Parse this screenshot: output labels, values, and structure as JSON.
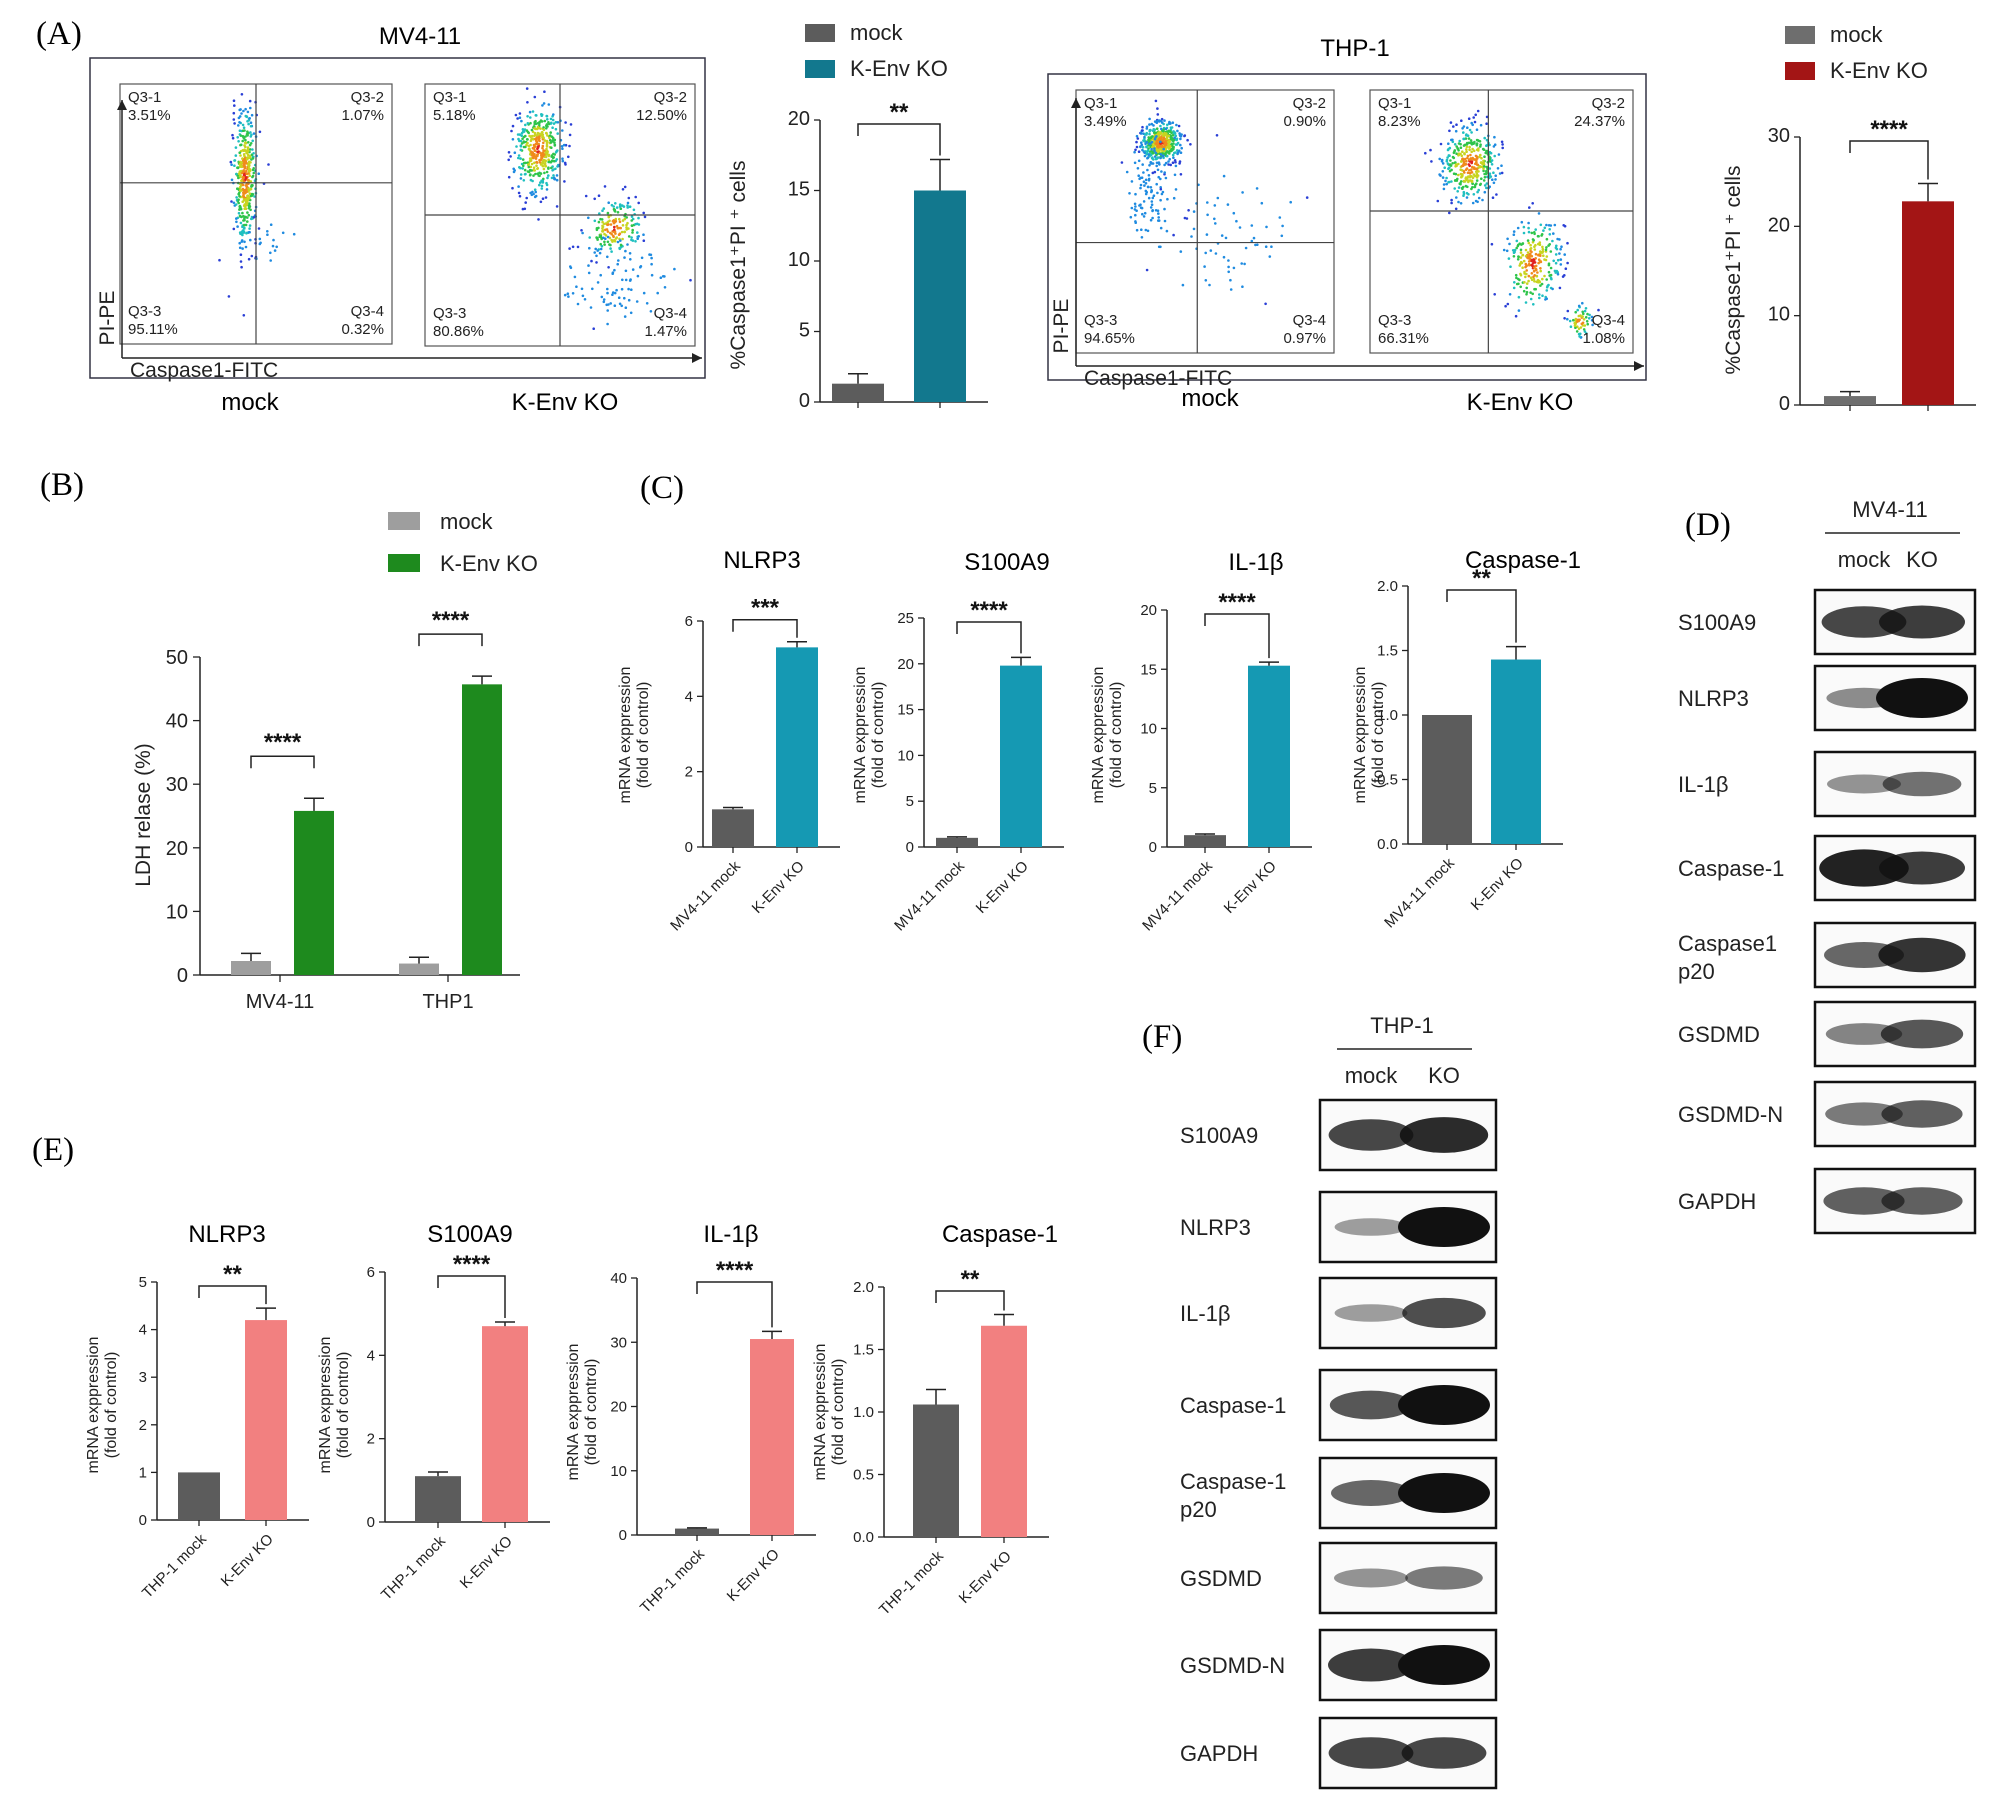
{
  "panels": {
    "A": {
      "label": "(A)",
      "mv411": {
        "title": "MV4-11",
        "x_axis": "Caspase1-FITC",
        "y_axis": "PI-PE",
        "mock_label": "mock",
        "ko_label": "K-Env KO",
        "mock_quadrants": [
          {
            "name": "Q3-1",
            "value": "3.51%"
          },
          {
            "name": "Q3-2",
            "value": "1.07%"
          },
          {
            "name": "Q3-3",
            "value": "95.11%"
          },
          {
            "name": "Q3-4",
            "value": "0.32%"
          }
        ],
        "ko_quadrants": [
          {
            "name": "Q3-1",
            "value": "5.18%"
          },
          {
            "name": "Q3-2",
            "value": "12.50%"
          },
          {
            "name": "Q3-3",
            "value": "80.86%"
          },
          {
            "name": "Q3-4",
            "value": "1.47%"
          }
        ]
      },
      "thp1": {
        "title": "THP-1",
        "x_axis": "Caspase1-FITC",
        "y_axis": "PI-PE",
        "mock_label": "mock",
        "ko_label": "K-Env KO",
        "mock_quadrants": [
          {
            "name": "Q3-1",
            "value": "3.49%"
          },
          {
            "name": "Q3-2",
            "value": "0.90%"
          },
          {
            "name": "Q3-3",
            "value": "94.65%"
          },
          {
            "name": "Q3-4",
            "value": "0.97%"
          }
        ],
        "ko_quadrants": [
          {
            "name": "Q3-1",
            "value": "8.23%"
          },
          {
            "name": "Q3-2",
            "value": "24.37%"
          },
          {
            "name": "Q3-3",
            "value": "66.31%"
          },
          {
            "name": "Q3-4",
            "value": "1.08%"
          }
        ]
      },
      "legend": [
        "mock",
        "K-Env KO"
      ]
    },
    "B": {
      "label": "(B)"
    },
    "C": {
      "label": "(C)"
    },
    "D": {
      "label": "(D)",
      "cell_line": "MV4-11",
      "lanes": [
        "mock",
        "KO"
      ],
      "bands": [
        "S100A9",
        "NLRP3",
        "IL-1β",
        "Caspase-1",
        "Caspase1 p20",
        "GSDMD",
        "GSDMD-N",
        "GAPDH"
      ]
    },
    "E": {
      "label": "(E)"
    },
    "F": {
      "label": "(F)",
      "cell_line": "THP-1",
      "lanes": [
        "mock",
        "KO"
      ],
      "bands": [
        "S100A9",
        "NLRP3",
        "IL-1β",
        "Caspase-1",
        "Caspase-1 p20",
        "GSDMD",
        "GSDMD-N",
        "GAPDH"
      ]
    }
  },
  "colors": {
    "mock_dark": "#5c5c5c",
    "mock_light": "#9e9e9e",
    "teal_A": "#12788e",
    "red_A": "#a31515",
    "green_B": "#1e8a1e",
    "teal_C": "#1599b3",
    "pink_E": "#f28080"
  },
  "chart_data": [
    {
      "id": "A-MV4-11",
      "type": "bar",
      "categories": [
        "mock",
        "K-Env KO"
      ],
      "values": [
        1.3,
        15.0
      ],
      "errors": [
        0.7,
        2.2
      ],
      "ylabel": "%Caspase1⁺PI ⁺ cells",
      "ylim": [
        0,
        20
      ],
      "yticks": [
        "0",
        "5",
        "10",
        "15",
        "20"
      ],
      "significance": "**",
      "legend": [
        "mock",
        "K-Env KO"
      ],
      "colors": [
        "#5c5c5c",
        "#12788e"
      ]
    },
    {
      "id": "A-THP-1",
      "type": "bar",
      "categories": [
        "mock",
        "K-Env KO"
      ],
      "values": [
        1.0,
        22.8
      ],
      "errors": [
        0.5,
        2.0
      ],
      "ylabel": "%Caspase1⁺PI ⁺ cells",
      "ylim": [
        0,
        30
      ],
      "yticks": [
        "0",
        "10",
        "20",
        "30"
      ],
      "significance": "****",
      "legend": [
        "mock",
        "K-Env KO"
      ],
      "colors": [
        "#6e6e6e",
        "#a31515"
      ]
    },
    {
      "id": "B",
      "type": "bar",
      "categories": [
        "MV4-11",
        "THP1"
      ],
      "series": [
        {
          "name": "mock",
          "values": [
            2.2,
            1.8
          ],
          "errors": [
            1.2,
            1.0
          ]
        },
        {
          "name": "K-Env KO",
          "values": [
            25.8,
            45.7
          ],
          "errors": [
            2.0,
            1.3
          ]
        }
      ],
      "ylabel": "LDH relase (%)",
      "ylim": [
        0,
        50
      ],
      "yticks": [
        "0",
        "10",
        "20",
        "30",
        "40",
        "50"
      ],
      "significance": [
        "****",
        "****"
      ]
    },
    {
      "id": "C-NLRP3",
      "type": "bar",
      "title": "NLRP3",
      "categories": [
        "MV4-11 mock",
        "K-Env KO"
      ],
      "values": [
        1.0,
        5.3
      ],
      "errors": [
        0.05,
        0.15
      ],
      "ylabel": "mRNA exppression (fold of control)",
      "ylim": [
        0,
        6
      ],
      "yticks": [
        "0",
        "2",
        "4",
        "6"
      ],
      "significance": "***"
    },
    {
      "id": "C-S100A9",
      "type": "bar",
      "title": "S100A9",
      "categories": [
        "MV4-11 mock",
        "K-Env KO"
      ],
      "values": [
        1.0,
        19.8
      ],
      "errors": [
        0.1,
        0.9
      ],
      "ylabel": "mRNA exppression (fold of control)",
      "ylim": [
        0,
        25
      ],
      "yticks": [
        "0",
        "5",
        "10",
        "15",
        "20",
        "25"
      ],
      "significance": "****"
    },
    {
      "id": "C-IL-1β",
      "type": "bar",
      "title": "IL-1β",
      "categories": [
        "MV4-11 mock",
        "K-Env KO"
      ],
      "values": [
        1.0,
        15.3
      ],
      "errors": [
        0.1,
        0.3
      ],
      "ylabel": "mRNA exppression (fold of control)",
      "ylim": [
        0,
        20
      ],
      "yticks": [
        "0",
        "5",
        "10",
        "15",
        "20"
      ],
      "significance": "****"
    },
    {
      "id": "C-Caspase-1",
      "type": "bar",
      "title": "Caspase-1",
      "categories": [
        "MV4-11 mock",
        "K-Env KO"
      ],
      "values": [
        1.0,
        1.43
      ],
      "errors": [
        0.0,
        0.1
      ],
      "ylabel": "mRNA exppression (fold of control)",
      "ylim": [
        0,
        2
      ],
      "yticks": [
        "0.0",
        "0.5",
        "1.0",
        "1.5",
        "2.0"
      ],
      "significance": "**"
    },
    {
      "id": "E-NLRP3",
      "type": "bar",
      "title": "NLRP3",
      "categories": [
        "THP-1 mock",
        "K-Env KO"
      ],
      "values": [
        1.0,
        4.2
      ],
      "errors": [
        0.0,
        0.25
      ],
      "ylabel": "mRNA exppression (fold of control)",
      "ylim": [
        0,
        5
      ],
      "yticks": [
        "0",
        "1",
        "2",
        "3",
        "4",
        "5"
      ],
      "significance": "**"
    },
    {
      "id": "E-S100A9",
      "type": "bar",
      "title": "S100A9",
      "categories": [
        "THP-1 mock",
        "K-Env KO"
      ],
      "values": [
        1.1,
        4.7
      ],
      "errors": [
        0.1,
        0.1
      ],
      "ylabel": "mRNA exppression (fold of control)",
      "ylim": [
        0,
        6
      ],
      "yticks": [
        "0",
        "2",
        "4",
        "6"
      ],
      "significance": "****"
    },
    {
      "id": "E-IL-1β",
      "type": "bar",
      "title": "IL-1β",
      "categories": [
        "THP-1 mock",
        "K-Env KO"
      ],
      "values": [
        1.0,
        30.5
      ],
      "errors": [
        0.1,
        1.2
      ],
      "ylabel": "mRNA exppression (fold of control)",
      "ylim": [
        0,
        40
      ],
      "yticks": [
        "0",
        "10",
        "20",
        "30",
        "40"
      ],
      "significance": "****"
    },
    {
      "id": "E-Caspase-1",
      "type": "bar",
      "title": "Caspase-1",
      "categories": [
        "THP-1 mock",
        "K-Env KO"
      ],
      "values": [
        1.06,
        1.69
      ],
      "errors": [
        0.12,
        0.09
      ],
      "ylabel": "mRNA exppression (fold of control)",
      "ylim": [
        0,
        2
      ],
      "yticks": [
        "0.0",
        "0.5",
        "1.0",
        "1.5",
        "2.0"
      ],
      "significance": "**"
    }
  ]
}
